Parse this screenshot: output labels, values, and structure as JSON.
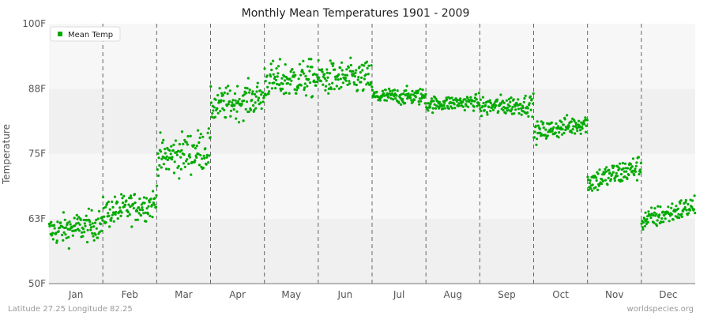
{
  "chart_data": {
    "type": "scatter",
    "title": "Monthly Mean Temperatures 1901 - 2009",
    "ylabel": "Temperature",
    "xlabel": "",
    "yticks": [
      "50F",
      "63F",
      "75F",
      "88F",
      "100F"
    ],
    "ytick_values": [
      50,
      62.5,
      75,
      87.5,
      100
    ],
    "ylim": [
      50,
      100
    ],
    "months": [
      "Jan",
      "Feb",
      "Mar",
      "Apr",
      "May",
      "Jun",
      "Jul",
      "Aug",
      "Sep",
      "Oct",
      "Nov",
      "Dec"
    ],
    "series": [
      {
        "name": "Mean Temp",
        "color": "#00aa00",
        "points_per_month": 109,
        "monthly_values": [
          {
            "month": "Jan",
            "start": 60.0,
            "end": 61.5,
            "spread": 1.8
          },
          {
            "month": "Feb",
            "start": 63.5,
            "end": 65.5,
            "spread": 1.8
          },
          {
            "month": "Mar",
            "start": 74.0,
            "end": 76.0,
            "spread": 2.5
          },
          {
            "month": "Apr",
            "start": 84.0,
            "end": 86.0,
            "spread": 2.0
          },
          {
            "month": "May",
            "start": 89.0,
            "end": 89.5,
            "spread": 2.2
          },
          {
            "month": "Jun",
            "start": 89.5,
            "end": 89.5,
            "spread": 2.0
          },
          {
            "month": "Jul",
            "start": 86.0,
            "end": 86.0,
            "spread": 1.0
          },
          {
            "month": "Aug",
            "start": 84.5,
            "end": 85.0,
            "spread": 0.9
          },
          {
            "month": "Sep",
            "start": 84.0,
            "end": 84.5,
            "spread": 1.2
          },
          {
            "month": "Oct",
            "start": 79.0,
            "end": 81.0,
            "spread": 1.2
          },
          {
            "month": "Nov",
            "start": 69.5,
            "end": 72.5,
            "spread": 1.5
          },
          {
            "month": "Dec",
            "start": 62.0,
            "end": 65.0,
            "spread": 1.3
          }
        ]
      }
    ],
    "grid": true,
    "legend": {
      "placement": "top-left",
      "label": "Mean Temp"
    }
  },
  "footer": {
    "left": "Latitude 27.25 Longitude 82.25",
    "right": "worldspecies.org"
  },
  "colors": {
    "series": "#00aa00",
    "band_light": "#f7f7f7",
    "band_dark": "#f0f0f0",
    "month_divider": "#666666"
  }
}
